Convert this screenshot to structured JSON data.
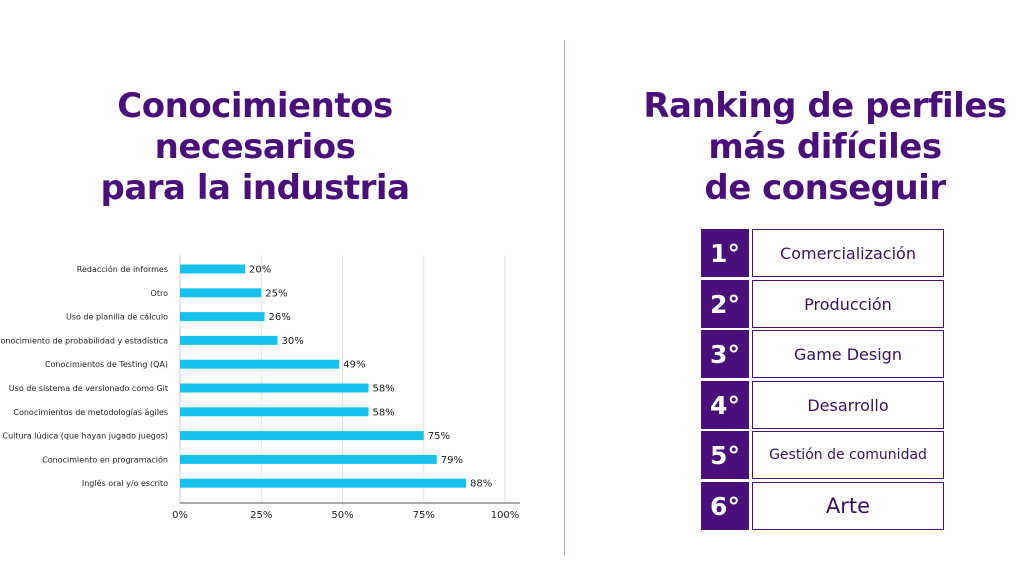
{
  "left_title": [
    "Conocimientos",
    "necesarios",
    "para la industria"
  ],
  "right_title": [
    "Ranking de perfiles",
    "más difíciles",
    "de conseguir"
  ],
  "ranking": [
    {
      "position": "1°",
      "label": "Comercialización"
    },
    {
      "position": "2°",
      "label": "Producción"
    },
    {
      "position": "3°",
      "label": "Game Design"
    },
    {
      "position": "4°",
      "label": "Desarrollo"
    },
    {
      "position": "5°",
      "label": "Gestión de comunidad"
    },
    {
      "position": "6°",
      "label": "Arte"
    }
  ],
  "colors": {
    "bar": "#17c3ec",
    "title": "#4a0f7a",
    "rank_box": "#4a0f7a"
  },
  "chart_data": {
    "type": "bar",
    "orientation": "horizontal",
    "title": "",
    "xlabel": "",
    "ylabel": "",
    "categories": [
      "Redacción de informes",
      "Otro",
      "Uso de planilla de cálculo",
      "Conocimiento de probabilidad y estadística",
      "Conocimientos de Testing (QA)",
      "Uso de sistema de versionado como Git",
      "Conocimientos de metodologías ágiles",
      "Cultura lúdica (que hayan jugado juegos)",
      "Conocimiento en programación",
      "Inglés oral y/o escrito"
    ],
    "values": [
      20,
      25,
      26,
      30,
      49,
      58,
      58,
      75,
      79,
      88
    ],
    "value_labels": [
      "20%",
      "25%",
      "26%",
      "30%",
      "49%",
      "58%",
      "58%",
      "75%",
      "79%",
      "88%"
    ],
    "xlim": [
      0,
      100
    ],
    "xticks": [
      0,
      25,
      50,
      75,
      100
    ],
    "xtick_labels": [
      "0%",
      "25%",
      "50%",
      "75%",
      "100%"
    ],
    "grid": true
  }
}
